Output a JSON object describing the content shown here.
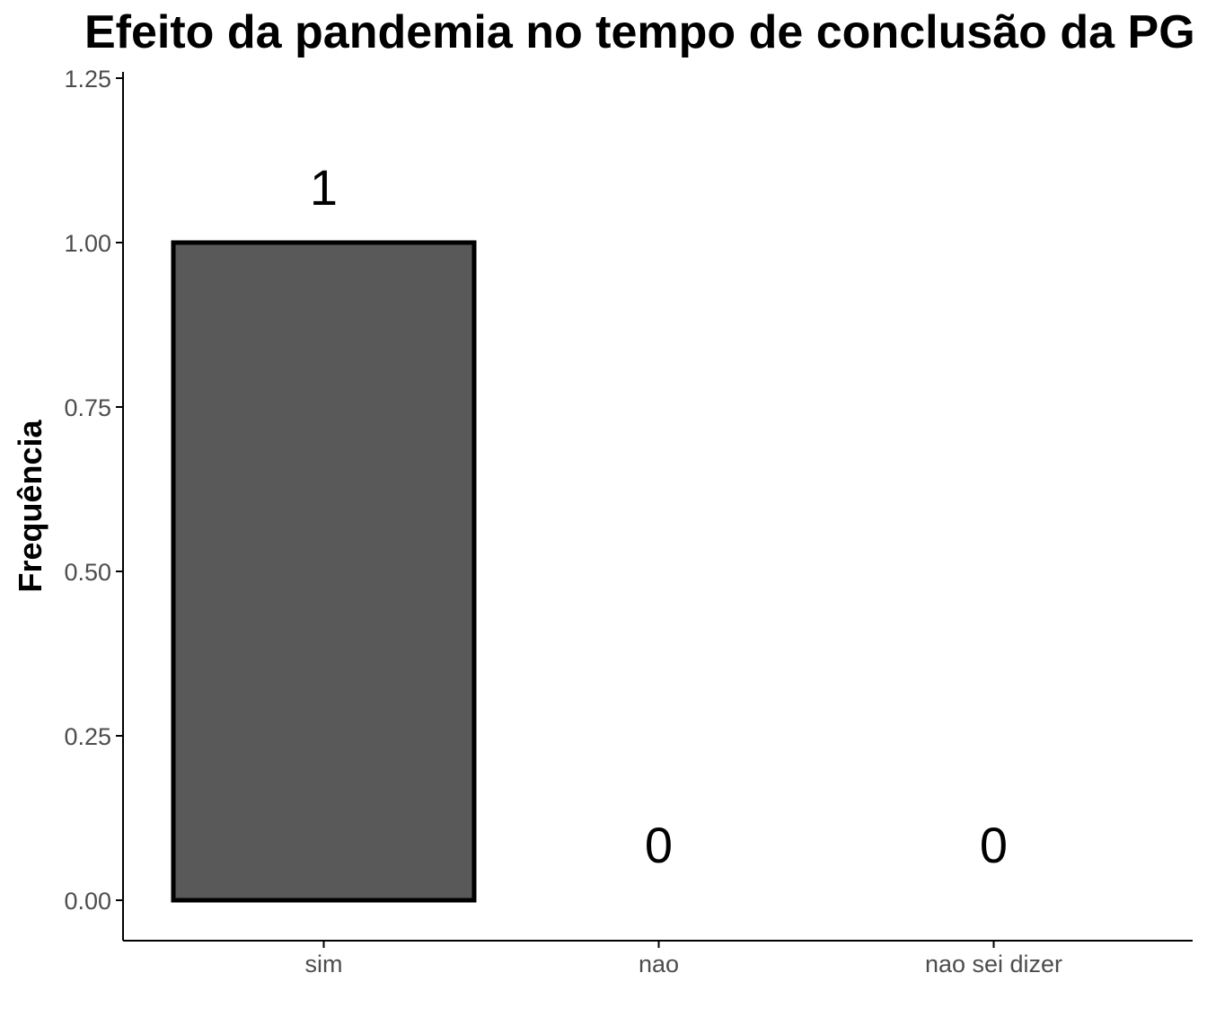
{
  "chart_data": {
    "type": "bar",
    "title": "Efeito da pandemia no tempo de conclusão da PG",
    "xlabel": "",
    "ylabel": "Frequência",
    "categories": [
      "sim",
      "nao",
      "nao sei dizer"
    ],
    "values": [
      1,
      0,
      0
    ],
    "data_labels": [
      "1",
      "0",
      "0"
    ],
    "ylim": [
      0,
      1.25
    ],
    "yticks": [
      "0.00",
      "0.25",
      "0.50",
      "0.75",
      "1.00",
      "1.25"
    ],
    "ytick_values": [
      0,
      0.25,
      0.5,
      0.75,
      1.0,
      1.25
    ],
    "grid": false,
    "legend": "none",
    "colors": {
      "bar_fill": "#595959",
      "bar_outline": "#000000",
      "axis": "#000000",
      "tick_text": "#4d4d4d"
    }
  }
}
